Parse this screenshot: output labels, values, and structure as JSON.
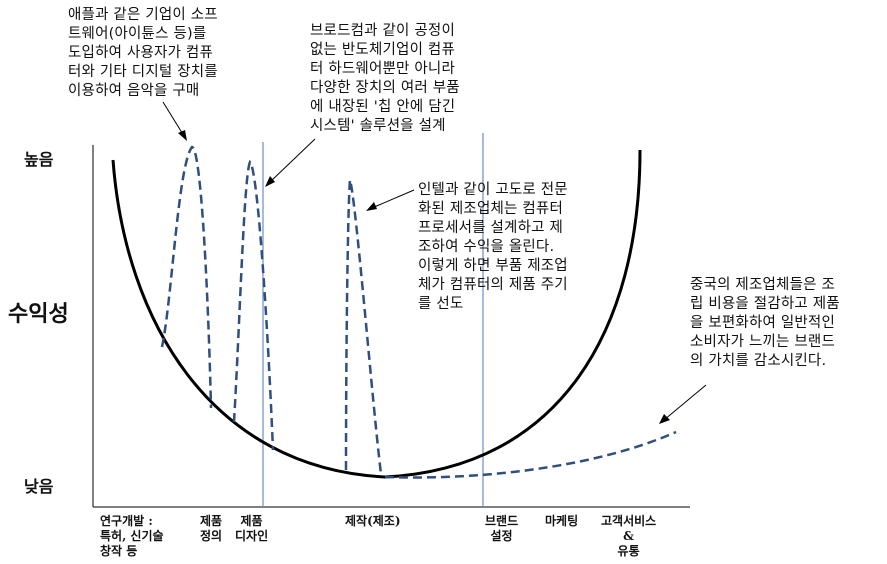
{
  "y_axis": {
    "title": "수익성",
    "high": "높음",
    "low": "낮음"
  },
  "x_axis": {
    "stages": [
      {
        "lines": [
          "연구개발 :",
          "특허, 신기술",
          "창작 등"
        ]
      },
      {
        "lines": [
          "제품",
          "정의"
        ]
      },
      {
        "lines": [
          "제품",
          "디자인"
        ]
      },
      {
        "lines": [
          "제작(제조)"
        ]
      },
      {
        "lines": [
          "브랜드",
          "설정"
        ]
      },
      {
        "lines": [
          "마케팅"
        ]
      },
      {
        "lines": [
          "고객서비스",
          "&",
          "유통"
        ]
      }
    ]
  },
  "annotations": {
    "apple": [
      "애플과 같은 기업이 소프",
      "트웨어(아이튠스 등)를",
      "도입하여 사용자가 컴퓨",
      "터와 기타 디지털 장치를",
      "이용하여 음악을 구매"
    ],
    "broadcom": [
      "브로드컴과 같이 공정이",
      "없는 반도체기업이 컴퓨",
      "터 하드웨어뿐만 아니라",
      "다양한 장치의 여러 부품",
      "에 내장된 '칩 안에 담긴",
      "시스템' 솔루션을 설계"
    ],
    "intel": [
      "인텔과 같이 고도로 전문",
      "화된 제조업체는 컴퓨터",
      "프로세서를 설계하고 제",
      "조하여 수익을 올린다.",
      "이렇게 하면 부품 제조업",
      "체가 컴퓨터의 제품 주기",
      "를 선도"
    ],
    "china": [
      "중국의 제조업체들은 조",
      "립 비용을 절감하고 제품",
      "을 보편화하여 일반적인",
      "소비자가 느끼는 브랜드",
      "의 가치를 감소시킨다."
    ]
  },
  "colors": {
    "curve": "#000000",
    "dashed": "#2f4f7f",
    "divider": "#6a8fc0"
  }
}
